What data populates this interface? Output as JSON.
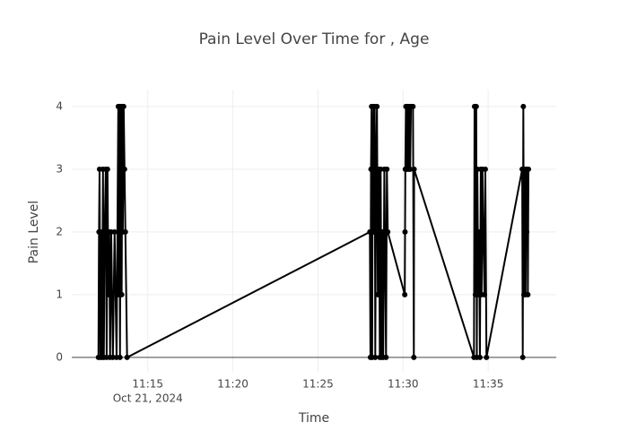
{
  "chart_data": {
    "type": "line",
    "title": "Pain Level Over Time for , Age",
    "x_label": "Time",
    "y_label": "Pain Level",
    "color": "#000000",
    "grid": true,
    "x": [
      "2024-10-21 11:12:06",
      "2024-10-21 11:12:08",
      "2024-10-21 11:12:10",
      "2024-10-21 11:12:13",
      "2024-10-21 11:12:16",
      "2024-10-21 11:12:19",
      "2024-10-21 11:12:22",
      "2024-10-21 11:12:25",
      "2024-10-21 11:12:28",
      "2024-10-21 11:12:32",
      "2024-10-21 11:12:35",
      "2024-10-21 11:12:38",
      "2024-10-21 11:12:41",
      "2024-10-21 11:12:44",
      "2024-10-21 11:12:47",
      "2024-10-21 11:12:51",
      "2024-10-21 11:12:57",
      "2024-10-21 11:13:03",
      "2024-10-21 11:13:10",
      "2024-10-21 11:13:16",
      "2024-10-21 11:13:18",
      "2024-10-21 11:13:20",
      "2024-10-21 11:13:22",
      "2024-10-21 11:13:24",
      "2024-10-21 11:13:26",
      "2024-10-21 11:13:28",
      "2024-10-21 11:13:30",
      "2024-10-21 11:13:32",
      "2024-10-21 11:13:35",
      "2024-10-21 11:13:38",
      "2024-10-21 11:13:41",
      "2024-10-21 11:13:47",
      "2024-10-21 11:28:03",
      "2024-10-21 11:28:05",
      "2024-10-21 11:28:07",
      "2024-10-21 11:28:09",
      "2024-10-21 11:28:11",
      "2024-10-21 11:28:13",
      "2024-10-21 11:28:16",
      "2024-10-21 11:28:18",
      "2024-10-21 11:28:20",
      "2024-10-21 11:28:22",
      "2024-10-21 11:28:25",
      "2024-10-21 11:28:28",
      "2024-10-21 11:28:31",
      "2024-10-21 11:28:35",
      "2024-10-21 11:28:38",
      "2024-10-21 11:28:41",
      "2024-10-21 11:28:44",
      "2024-10-21 11:28:47",
      "2024-10-21 11:28:50",
      "2024-10-21 11:28:54",
      "2024-10-21 11:29:00",
      "2024-10-21 11:29:03",
      "2024-10-21 11:29:06",
      "2024-10-21 11:30:06",
      "2024-10-21 11:30:07",
      "2024-10-21 11:30:08",
      "2024-10-21 11:30:10",
      "2024-10-21 11:30:13",
      "2024-10-21 11:30:16",
      "2024-10-21 11:30:19",
      "2024-10-21 11:30:22",
      "2024-10-21 11:30:25",
      "2024-10-21 11:30:28",
      "2024-10-21 11:30:35",
      "2024-10-21 11:30:38",
      "2024-10-21 11:30:39",
      "2024-10-21 11:34:10",
      "2024-10-21 11:34:12",
      "2024-10-21 11:34:15",
      "2024-10-21 11:34:18",
      "2024-10-21 11:34:20",
      "2024-10-21 11:34:22",
      "2024-10-21 11:34:25",
      "2024-10-21 11:34:28",
      "2024-10-21 11:34:31",
      "2024-10-21 11:34:34",
      "2024-10-21 11:34:37",
      "2024-10-21 11:34:40",
      "2024-10-21 11:34:43",
      "2024-10-21 11:34:47",
      "2024-10-21 11:34:50",
      "2024-10-21 11:34:54",
      "2024-10-21 11:37:00",
      "2024-10-21 11:37:02",
      "2024-10-21 11:37:04",
      "2024-10-21 11:37:06",
      "2024-10-21 11:37:08",
      "2024-10-21 11:37:10",
      "2024-10-21 11:37:12",
      "2024-10-21 11:37:14",
      "2024-10-21 11:37:16",
      "2024-10-21 11:37:18",
      "2024-10-21 11:37:20",
      "2024-10-21 11:37:22"
    ],
    "values": [
      0,
      2,
      3,
      0,
      2,
      0,
      3,
      0,
      2,
      3,
      0,
      3,
      1,
      2,
      0,
      2,
      0,
      2,
      0,
      4,
      1,
      4,
      0,
      3,
      4,
      1,
      4,
      2,
      4,
      3,
      2,
      0,
      2,
      0,
      3,
      4,
      0,
      3,
      4,
      2,
      4,
      0,
      3,
      4,
      1,
      3,
      0,
      3,
      0,
      2,
      0,
      3,
      0,
      3,
      2,
      1,
      2,
      3,
      4,
      3,
      4,
      3,
      4,
      3,
      4,
      4,
      0,
      3,
      0,
      4,
      1,
      4,
      0,
      3,
      1,
      2,
      0,
      3,
      1,
      3,
      2,
      1,
      3,
      0,
      3,
      0,
      4,
      1,
      3,
      2,
      1,
      3,
      2,
      3,
      1,
      3
    ],
    "xlim": [
      "2024-10-21 11:10:32",
      "2024-10-21 11:39:00"
    ],
    "xticks": [
      {
        "value": "2024-10-21 11:15",
        "label": "11:15"
      },
      {
        "value": "2024-10-21 11:20",
        "label": "11:20"
      },
      {
        "value": "2024-10-21 11:25",
        "label": "11:25"
      },
      {
        "value": "2024-10-21 11:30",
        "label": "11:30"
      },
      {
        "value": "2024-10-21 11:35",
        "label": "11:35"
      }
    ],
    "x_date_label": "Oct 21, 2024",
    "ylim": [
      -0.23,
      4.27
    ],
    "yticks": [
      0,
      1,
      2,
      3,
      4
    ]
  }
}
